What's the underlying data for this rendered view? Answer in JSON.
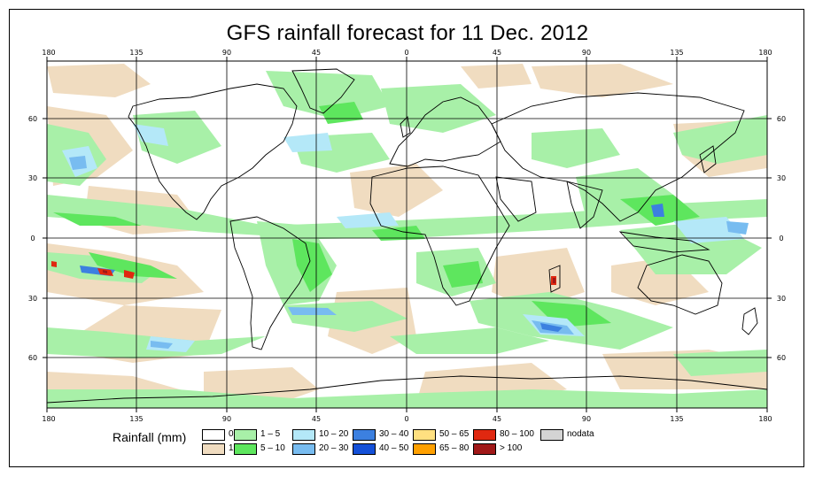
{
  "title": "GFS rainfall forecast for 11 Dec. 2012",
  "axes": {
    "top_lon_labels": [
      "180",
      "135",
      "90",
      "45",
      "0",
      "45",
      "90",
      "135",
      "180"
    ],
    "bottom_lon_labels": [
      "180",
      "135",
      "90",
      "45",
      "0",
      "45",
      "90",
      "135",
      "180"
    ],
    "left_lat_labels": [
      "60",
      "30",
      "0",
      "30",
      "60"
    ],
    "right_lat_labels": [
      "60",
      "30",
      "0",
      "30",
      "60"
    ]
  },
  "legend": {
    "title": "Rainfall (mm)",
    "items": [
      {
        "label": "0",
        "color": "#ffffff"
      },
      {
        "label": "1",
        "color": "#f0dcc0"
      },
      {
        "label": "1 – 5",
        "color": "#a8f0a8"
      },
      {
        "label": "5 – 10",
        "color": "#5ee65e"
      },
      {
        "label": "10 – 20",
        "color": "#b4e8f8"
      },
      {
        "label": "20 – 30",
        "color": "#78bcf0"
      },
      {
        "label": "30 – 40",
        "color": "#3c80e0"
      },
      {
        "label": "40 – 50",
        "color": "#1450d8"
      },
      {
        "label": "50 – 65",
        "color": "#ffe080"
      },
      {
        "label": "65 – 80",
        "color": "#ffa000"
      },
      {
        "label": "80 – 100",
        "color": "#e02810"
      },
      {
        "label": "> 100",
        "color": "#a01818"
      },
      {
        "label": "nodata",
        "color": "#d4d4d4"
      }
    ]
  }
}
